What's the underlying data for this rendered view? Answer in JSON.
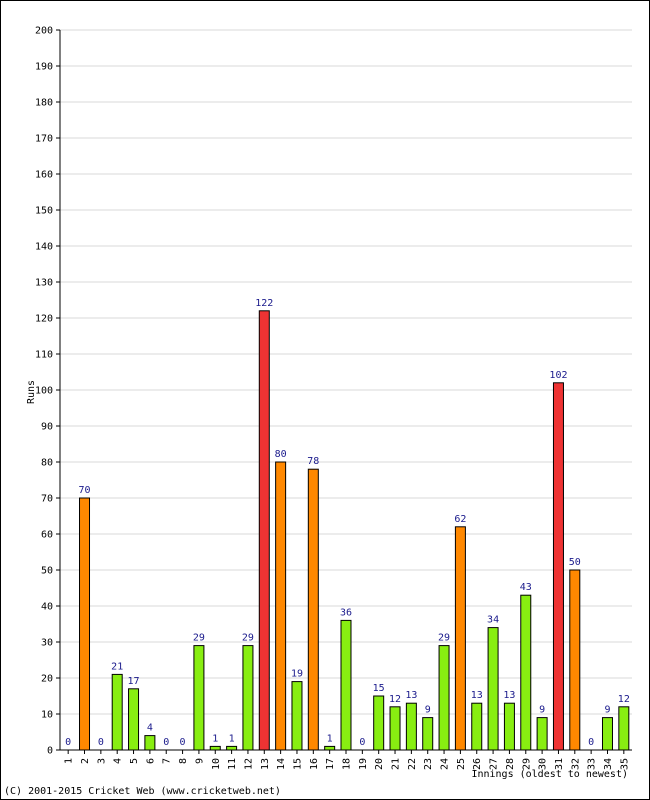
{
  "chart_data": {
    "type": "bar",
    "ylabel": "Runs",
    "xlabel": "Innings (oldest to newest)",
    "ylim": [
      0,
      200
    ],
    "ytick_step": 10,
    "grid": true,
    "categories": [
      "1",
      "2",
      "3",
      "4",
      "5",
      "6",
      "7",
      "8",
      "9",
      "10",
      "11",
      "12",
      "13",
      "14",
      "15",
      "16",
      "17",
      "18",
      "19",
      "20",
      "21",
      "22",
      "23",
      "24",
      "25",
      "26",
      "27",
      "28",
      "29",
      "30",
      "31",
      "32",
      "33",
      "34",
      "35"
    ],
    "values": [
      0,
      70,
      0,
      21,
      17,
      4,
      0,
      0,
      29,
      1,
      1,
      29,
      122,
      80,
      19,
      78,
      1,
      36,
      0,
      15,
      12,
      13,
      9,
      29,
      62,
      13,
      34,
      13,
      43,
      9,
      102,
      50,
      0,
      9,
      12
    ],
    "colors": {
      "under_50": "#88ee11",
      "fifty": "#ff8800",
      "hundred": "#ee3333",
      "label": "#1a1a8c"
    }
  },
  "credit": "(C) 2001-2015 Cricket Web (www.cricketweb.net)"
}
